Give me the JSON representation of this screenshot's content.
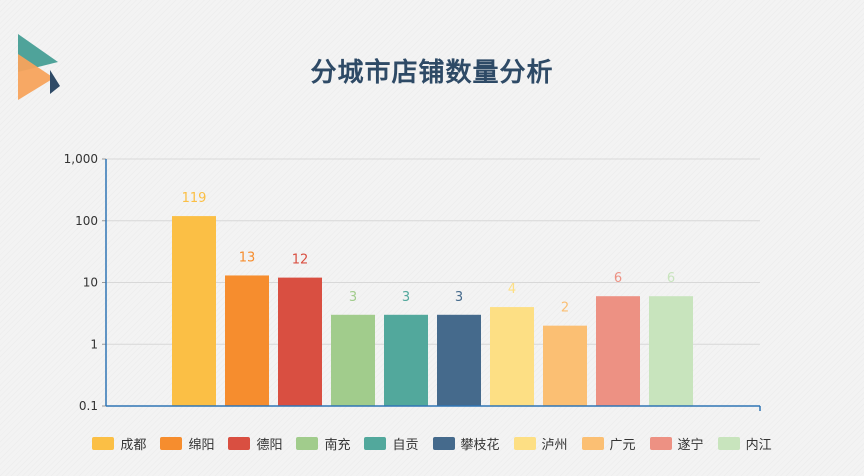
{
  "chart_data": {
    "type": "bar",
    "title": "分城市店铺数量分析",
    "yscale": "log",
    "ylim": [
      0.1,
      1000
    ],
    "ytick_labels": [
      "0.1",
      "1",
      "10",
      "100",
      "1,000"
    ],
    "ytick_values": [
      0.1,
      1,
      10,
      100,
      1000
    ],
    "grid": true,
    "legend_position": "bottom",
    "categories": [
      "成都",
      "绵阳",
      "德阳",
      "南充",
      "自贡",
      "攀枝花",
      "泸州",
      "广元",
      "遂宁",
      "内江"
    ],
    "values": [
      119,
      13,
      12,
      3,
      3,
      3,
      4,
      2,
      6,
      6
    ],
    "colors": [
      "#fbbf45",
      "#f68d2e",
      "#d94f41",
      "#a1cc8c",
      "#52a89c",
      "#456a8c",
      "#fddf84",
      "#fbbf73",
      "#ed9183",
      "#c8e4bd"
    ]
  }
}
